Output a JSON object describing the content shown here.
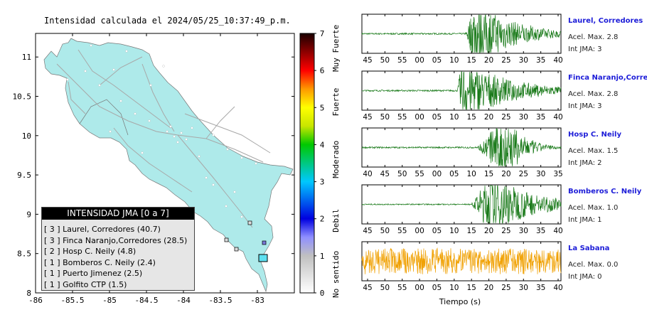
{
  "map": {
    "title": "Intensidad calculada el 2024/05/25_10:37:49_p.m.",
    "x_ticks": [
      "-86",
      "-85.5",
      "-85",
      "-84.5",
      "-84",
      "-83.5",
      "-83"
    ],
    "y_ticks": [
      "11",
      "10.5",
      "10",
      "9.5",
      "9",
      "8.5",
      "8"
    ],
    "x_range": [
      -86,
      -82.5
    ],
    "y_range": [
      8,
      11.3
    ],
    "colors": {
      "land": "#aeeaea",
      "roads": "#a8a8a8",
      "frame": "#000000"
    }
  },
  "colorbar": {
    "ticks": [
      "0",
      "1",
      "2",
      "3",
      "4",
      "5",
      "6",
      "7"
    ],
    "labels": [
      "No sentido",
      "Debil",
      "Moderado",
      "Fuerte",
      "Muy Fuerte"
    ],
    "range": [
      0,
      7
    ]
  },
  "legend": {
    "title": "INTENSIDAD JMA [0 a 7]",
    "entries": [
      "[ 3 ]  Laurel, Corredores (40.7)",
      "[ 3 ]  Finca Naranjo,Corredores (28.5)",
      "[ 2 ]  Hosp C. Neily (4.8)",
      "[ 1 ]  Bomberos C. Neily (2.4)",
      "[ 1 ]  Puerto Jimenez (2.5)",
      "[ 1 ]  Golfito CTP (1.5)"
    ]
  },
  "stations": [
    {
      "name": "Laurel, Corredores",
      "acc": "Acel. Max. 2.8",
      "jma": "Int JMA: 3",
      "color": "#1a7a1a",
      "ticks": [
        "45",
        "50",
        "55",
        "00",
        "05",
        "10",
        "15",
        "20",
        "25",
        "30",
        "35",
        "40"
      ]
    },
    {
      "name": "Finca Naranjo,Corredores",
      "acc": "Acel. Max. 2.8",
      "jma": "Int JMA: 3",
      "color": "#1a7a1a",
      "ticks": [
        "45",
        "50",
        "55",
        "00",
        "05",
        "10",
        "15",
        "20",
        "25",
        "30",
        "35",
        "40"
      ]
    },
    {
      "name": "Hosp C. Neily",
      "acc": "Acel. Max. 1.5",
      "jma": "Int JMA: 2",
      "color": "#1a7a1a",
      "ticks": [
        "40",
        "45",
        "50",
        "55",
        "00",
        "05",
        "10",
        "15",
        "20",
        "25",
        "30",
        "35"
      ]
    },
    {
      "name": "Bomberos C. Neily",
      "acc": "Acel. Max. 1.0",
      "jma": "Int JMA: 1",
      "color": "#1a7a1a",
      "ticks": [
        "45",
        "50",
        "55",
        "00",
        "05",
        "10",
        "15",
        "20",
        "25",
        "30",
        "35",
        "40"
      ]
    },
    {
      "name": "La Sabana",
      "acc": "Acel. Max. 0.0",
      "jma": "Int JMA: 0",
      "color": "#f0a000",
      "ticks": [
        "45",
        "50",
        "55",
        "00",
        "05",
        "10",
        "15",
        "20",
        "25",
        "30",
        "35",
        "40"
      ]
    }
  ],
  "traces_xlabel": "Tiempo (s)"
}
